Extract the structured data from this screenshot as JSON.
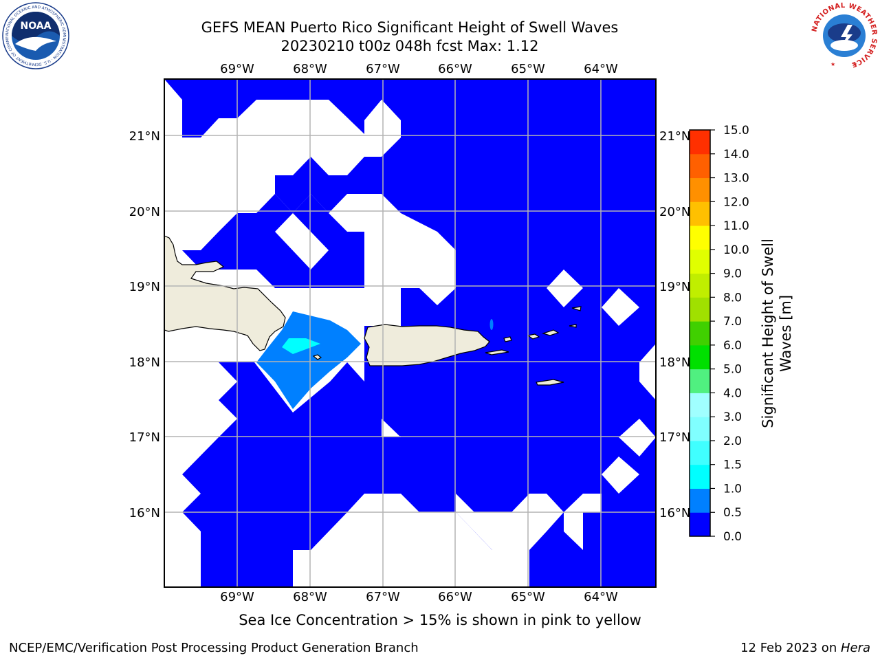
{
  "title": {
    "line1": "GEFS MEAN Puerto Rico Significant Height of Swell Waves",
    "line2": "20230210 t00z 048h fcst   Max: 1.12"
  },
  "map": {
    "lon_ticks": [
      "69°W",
      "68°W",
      "67°W",
      "66°W",
      "65°W",
      "64°W"
    ],
    "lat_ticks": [
      "21°N",
      "20°N",
      "19°N",
      "18°N",
      "17°N",
      "16°N"
    ],
    "fill_colors": {
      "low": "#0000ff",
      "mid": "#0080ff",
      "high": "#00ffff",
      "land": "#efecdc",
      "grid": "#b4b4b4"
    }
  },
  "colorbar": {
    "label": "Significant Height of Swell Waves [m]",
    "label_line1": "Significant Height of Swell",
    "label_line2": "Waves [m]",
    "ticks": [
      "0.0",
      "0.5",
      "1.0",
      "1.5",
      "2.0",
      "3.0",
      "4.0",
      "5.0",
      "6.0",
      "7.0",
      "8.0",
      "9.0",
      "10.0",
      "11.0",
      "12.0",
      "13.0",
      "14.0",
      "15.0"
    ],
    "colors": [
      "#0000ff",
      "#0080ff",
      "#00ffff",
      "#40ffff",
      "#80ffff",
      "#a0ffff",
      "#50f080",
      "#00e000",
      "#40d000",
      "#a0e000",
      "#c0ee00",
      "#e0ff00",
      "#ffff00",
      "#ffc000",
      "#ff9000",
      "#ff6000",
      "#ff3000",
      "#ff0000"
    ]
  },
  "caption": "Sea Ice Concentration > 15% is shown in pink to yellow",
  "footer": {
    "left": "NCEP/EMC/Verification Post Processing Product Generation Branch",
    "right_prefix": "12 Feb 2023 on ",
    "right_italic": "Hera"
  },
  "logos": {
    "noaa_text": "NOAA",
    "noaa_ring_text": "NATIONAL OCEANIC AND ATMOSPHERIC ADMINISTRATION · U.S. DEPARTMENT OF COMMERCE",
    "nws_text": "NATIONAL WEATHER SERVICE"
  }
}
